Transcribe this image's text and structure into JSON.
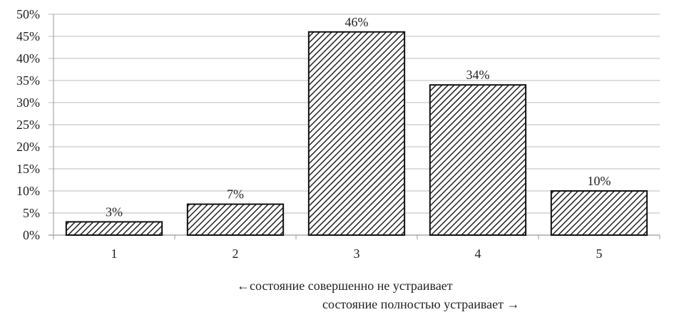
{
  "chart_data": {
    "type": "bar",
    "categories": [
      "1",
      "2",
      "3",
      "4",
      "5"
    ],
    "values": [
      3,
      7,
      46,
      34,
      10
    ],
    "data_labels": [
      "3%",
      "7%",
      "46%",
      "34%",
      "10%"
    ],
    "title": "",
    "xlabel": "",
    "ylabel": "",
    "ylim": [
      0,
      50
    ],
    "yticks": [
      "0%",
      "5%",
      "10%",
      "15%",
      "20%",
      "25%",
      "30%",
      "35%",
      "40%",
      "45%",
      "50%"
    ],
    "grid": true,
    "bar_fill": "diagonal-hatch",
    "colors": {
      "bar_stroke": "#111111",
      "hatch": "#222222",
      "grid": "#c8c8c8"
    },
    "annotations": [
      "←состояние совершенно не устраивает",
      "состояние полностью устраивает →"
    ]
  }
}
